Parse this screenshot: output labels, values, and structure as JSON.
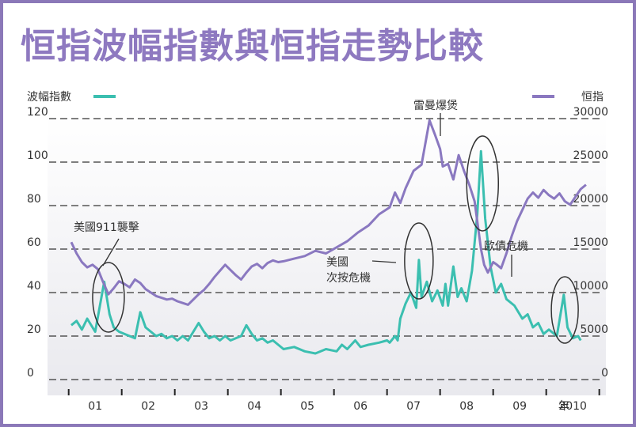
{
  "chart_data": {
    "type": "line",
    "title": "恒指波幅指數與恒指走勢比較",
    "x_unit": "年",
    "x_categories": [
      "01",
      "02",
      "03",
      "04",
      "05",
      "06",
      "07",
      "08",
      "09",
      "2010"
    ],
    "left_axis": {
      "label": "波幅指數",
      "ticks": [
        0,
        20,
        40,
        60,
        80,
        100,
        120
      ],
      "range": [
        0,
        120
      ]
    },
    "right_axis": {
      "label": "恒指",
      "ticks": [
        0,
        5000,
        10000,
        15000,
        20000,
        25000,
        30000
      ],
      "range": [
        0,
        30000
      ]
    },
    "grid": true,
    "series": [
      {
        "name": "波幅指數",
        "axis": "left",
        "color": "#3bbfb0",
        "points": [
          [
            2001.0,
            25
          ],
          [
            2001.1,
            27
          ],
          [
            2001.2,
            23
          ],
          [
            2001.3,
            28
          ],
          [
            2001.45,
            22
          ],
          [
            2001.62,
            45
          ],
          [
            2001.72,
            30
          ],
          [
            2001.8,
            24
          ],
          [
            2001.9,
            22
          ],
          [
            2002.0,
            21
          ],
          [
            2002.1,
            20
          ],
          [
            2002.2,
            19
          ],
          [
            2002.3,
            31
          ],
          [
            2002.4,
            24
          ],
          [
            2002.5,
            22
          ],
          [
            2002.6,
            20
          ],
          [
            2002.7,
            21
          ],
          [
            2002.8,
            19
          ],
          [
            2002.9,
            20
          ],
          [
            2003.0,
            18
          ],
          [
            2003.1,
            20
          ],
          [
            2003.2,
            18
          ],
          [
            2003.3,
            22
          ],
          [
            2003.4,
            26
          ],
          [
            2003.5,
            22
          ],
          [
            2003.6,
            19
          ],
          [
            2003.7,
            20
          ],
          [
            2003.8,
            18
          ],
          [
            2003.9,
            20
          ],
          [
            2004.0,
            18
          ],
          [
            2004.2,
            20
          ],
          [
            2004.3,
            25
          ],
          [
            2004.4,
            21
          ],
          [
            2004.5,
            18
          ],
          [
            2004.6,
            19
          ],
          [
            2004.7,
            17
          ],
          [
            2004.8,
            18
          ],
          [
            2004.9,
            16
          ],
          [
            2005.0,
            14
          ],
          [
            2005.2,
            15
          ],
          [
            2005.4,
            13
          ],
          [
            2005.6,
            12
          ],
          [
            2005.8,
            14
          ],
          [
            2006.0,
            13
          ],
          [
            2006.1,
            16
          ],
          [
            2006.2,
            14
          ],
          [
            2006.35,
            18
          ],
          [
            2006.45,
            15
          ],
          [
            2006.6,
            16
          ],
          [
            2006.8,
            17
          ],
          [
            2006.95,
            18
          ],
          [
            2007.0,
            17
          ],
          [
            2007.1,
            20
          ],
          [
            2007.15,
            18
          ],
          [
            2007.2,
            28
          ],
          [
            2007.3,
            35
          ],
          [
            2007.4,
            40
          ],
          [
            2007.5,
            33
          ],
          [
            2007.55,
            55
          ],
          [
            2007.6,
            38
          ],
          [
            2007.7,
            45
          ],
          [
            2007.8,
            36
          ],
          [
            2007.9,
            41
          ],
          [
            2008.0,
            34
          ],
          [
            2008.05,
            44
          ],
          [
            2008.1,
            34
          ],
          [
            2008.2,
            52
          ],
          [
            2008.28,
            38
          ],
          [
            2008.35,
            42
          ],
          [
            2008.45,
            36
          ],
          [
            2008.55,
            50
          ],
          [
            2008.65,
            76
          ],
          [
            2008.72,
            105
          ],
          [
            2008.8,
            74
          ],
          [
            2008.9,
            52
          ],
          [
            2009.0,
            40
          ],
          [
            2009.1,
            44
          ],
          [
            2009.2,
            37
          ],
          [
            2009.35,
            34
          ],
          [
            2009.5,
            28
          ],
          [
            2009.6,
            30
          ],
          [
            2009.7,
            24
          ],
          [
            2009.8,
            26
          ],
          [
            2009.9,
            21
          ],
          [
            2010.0,
            23
          ],
          [
            2010.15,
            20
          ],
          [
            2010.28,
            39
          ],
          [
            2010.35,
            24
          ],
          [
            2010.45,
            19
          ],
          [
            2010.55,
            20
          ],
          [
            2010.6,
            18
          ]
        ]
      },
      {
        "name": "恒指",
        "axis": "right",
        "color": "#8a78c0",
        "points": [
          [
            2001.0,
            15800
          ],
          [
            2001.1,
            14500
          ],
          [
            2001.2,
            13500
          ],
          [
            2001.3,
            12900
          ],
          [
            2001.4,
            13200
          ],
          [
            2001.5,
            12700
          ],
          [
            2001.6,
            11200
          ],
          [
            2001.7,
            9800
          ],
          [
            2001.8,
            10500
          ],
          [
            2001.9,
            11300
          ],
          [
            2002.0,
            11000
          ],
          [
            2002.1,
            10600
          ],
          [
            2002.2,
            11500
          ],
          [
            2002.3,
            11100
          ],
          [
            2002.4,
            10400
          ],
          [
            2002.5,
            10000
          ],
          [
            2002.6,
            9600
          ],
          [
            2002.7,
            9400
          ],
          [
            2002.8,
            9200
          ],
          [
            2002.9,
            9300
          ],
          [
            2003.0,
            9000
          ],
          [
            2003.1,
            8800
          ],
          [
            2003.2,
            8600
          ],
          [
            2003.3,
            9200
          ],
          [
            2003.4,
            9800
          ],
          [
            2003.5,
            10300
          ],
          [
            2003.6,
            11000
          ],
          [
            2003.7,
            11800
          ],
          [
            2003.8,
            12500
          ],
          [
            2003.9,
            13200
          ],
          [
            2004.0,
            12600
          ],
          [
            2004.1,
            12000
          ],
          [
            2004.2,
            11500
          ],
          [
            2004.3,
            12300
          ],
          [
            2004.4,
            13000
          ],
          [
            2004.5,
            13300
          ],
          [
            2004.6,
            12800
          ],
          [
            2004.7,
            13400
          ],
          [
            2004.8,
            13700
          ],
          [
            2004.9,
            13500
          ],
          [
            2005.0,
            13600
          ],
          [
            2005.2,
            13900
          ],
          [
            2005.4,
            14200
          ],
          [
            2005.6,
            14800
          ],
          [
            2005.8,
            14500
          ],
          [
            2006.0,
            15200
          ],
          [
            2006.2,
            15900
          ],
          [
            2006.4,
            16900
          ],
          [
            2006.6,
            17700
          ],
          [
            2006.8,
            19000
          ],
          [
            2007.0,
            19800
          ],
          [
            2007.1,
            21500
          ],
          [
            2007.2,
            20300
          ],
          [
            2007.3,
            22000
          ],
          [
            2007.45,
            24000
          ],
          [
            2007.6,
            24700
          ],
          [
            2007.75,
            29800
          ],
          [
            2007.85,
            28200
          ],
          [
            2007.95,
            26500
          ],
          [
            2008.0,
            24500
          ],
          [
            2008.1,
            24800
          ],
          [
            2008.2,
            23000
          ],
          [
            2008.3,
            25800
          ],
          [
            2008.4,
            24000
          ],
          [
            2008.5,
            22400
          ],
          [
            2008.6,
            20500
          ],
          [
            2008.65,
            18200
          ],
          [
            2008.72,
            15000
          ],
          [
            2008.78,
            13200
          ],
          [
            2008.85,
            12300
          ],
          [
            2008.95,
            13500
          ],
          [
            2009.0,
            13300
          ],
          [
            2009.1,
            12800
          ],
          [
            2009.2,
            14500
          ],
          [
            2009.3,
            16500
          ],
          [
            2009.4,
            18200
          ],
          [
            2009.5,
            19500
          ],
          [
            2009.6,
            20800
          ],
          [
            2009.7,
            21500
          ],
          [
            2009.8,
            20900
          ],
          [
            2009.9,
            21800
          ],
          [
            2010.0,
            21200
          ],
          [
            2010.1,
            20800
          ],
          [
            2010.2,
            21400
          ],
          [
            2010.3,
            20500
          ],
          [
            2010.4,
            20100
          ],
          [
            2010.5,
            21000
          ],
          [
            2010.6,
            21900
          ],
          [
            2010.7,
            22400
          ]
        ]
      }
    ],
    "annotations": [
      {
        "text": "美國911襲擊",
        "x": 2001.7,
        "y": 25
      },
      {
        "text": "次按危機",
        "x": 2007.55,
        "y": 45
      },
      {
        "text": "雷曼爆煲",
        "x": 2008.75,
        "y": 90
      },
      {
        "text": "歐債危機",
        "x": 2010.3,
        "y": 25
      }
    ],
    "annotation_extra_label": "美國"
  }
}
